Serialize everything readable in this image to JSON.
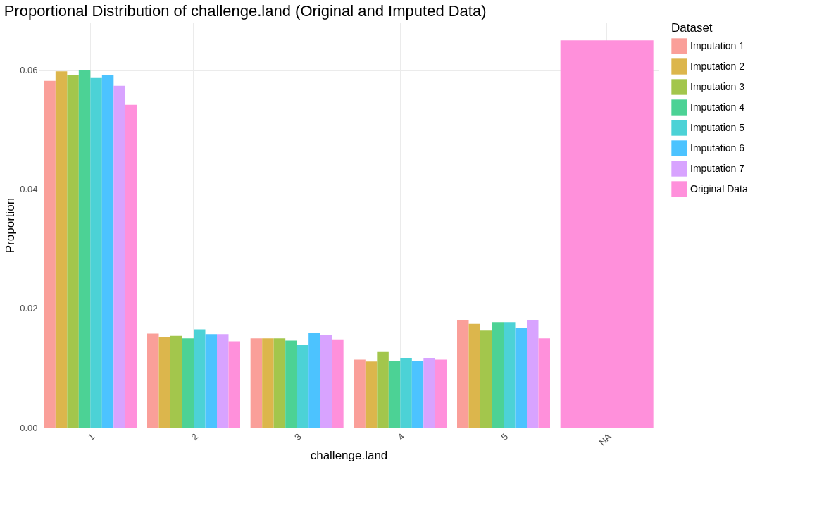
{
  "chart_data": {
    "type": "bar",
    "title": "Proportional Distribution of challenge.land (Original and Imputed Data)",
    "xlabel": "challenge.land",
    "ylabel": "Proportion",
    "legend_title": "Dataset",
    "categories": [
      "1",
      "2",
      "3",
      "4",
      "5",
      "NA"
    ],
    "series": [
      {
        "name": "Imputation 1",
        "color": "#fa9f99",
        "values": [
          0.0582,
          0.0158,
          0.015,
          0.0114,
          0.0181,
          null
        ]
      },
      {
        "name": "Imputation 2",
        "color": "#dcb64c",
        "values": [
          0.0598,
          0.0152,
          0.015,
          0.0111,
          0.0174,
          null
        ]
      },
      {
        "name": "Imputation 3",
        "color": "#a3c64c",
        "values": [
          0.0592,
          0.0154,
          0.015,
          0.0128,
          0.0163,
          null
        ]
      },
      {
        "name": "Imputation 4",
        "color": "#4cd295",
        "values": [
          0.06,
          0.015,
          0.0146,
          0.0112,
          0.0177,
          null
        ]
      },
      {
        "name": "Imputation 5",
        "color": "#4cd2d6",
        "values": [
          0.0587,
          0.0165,
          0.0139,
          0.0117,
          0.0177,
          null
        ]
      },
      {
        "name": "Imputation 6",
        "color": "#4cc3ff",
        "values": [
          0.0592,
          0.0157,
          0.0159,
          0.0112,
          0.0167,
          null
        ]
      },
      {
        "name": "Imputation 7",
        "color": "#d8a3ff",
        "values": [
          0.0574,
          0.0157,
          0.0156,
          0.0117,
          0.0181,
          null
        ]
      },
      {
        "name": "Original Data",
        "color": "#ff90db",
        "values": [
          0.0542,
          0.0145,
          0.0148,
          0.0114,
          0.015,
          0.065
        ]
      }
    ],
    "ylim": [
      0,
      0.068
    ],
    "yticks": [
      {
        "value": 0,
        "label": "0.00"
      },
      {
        "value": 0.01,
        "label": null
      },
      {
        "value": 0.02,
        "label": "0.02"
      },
      {
        "value": 0.03,
        "label": null
      },
      {
        "value": 0.04,
        "label": "0.04"
      },
      {
        "value": 0.05,
        "label": null
      },
      {
        "value": 0.06,
        "label": "0.06"
      }
    ],
    "grid": true,
    "legend": "right"
  }
}
